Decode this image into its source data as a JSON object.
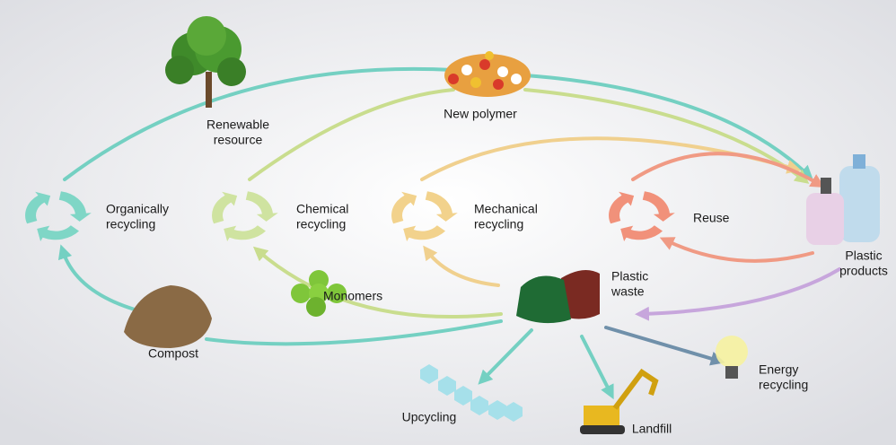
{
  "nodes": [
    {
      "lines": [
        "Renewable",
        "resource"
      ]
    },
    {
      "lines": [
        "New polymer"
      ]
    },
    {
      "lines": [
        "Organically",
        "recycling"
      ]
    },
    {
      "lines": [
        "Chemical",
        "recycling"
      ]
    },
    {
      "lines": [
        "Mechanical",
        "recycling"
      ]
    },
    {
      "lines": [
        "Reuse"
      ]
    },
    {
      "lines": [
        "Plastic",
        "products"
      ]
    },
    {
      "lines": [
        "Plastic",
        "waste"
      ]
    },
    {
      "lines": [
        "Monomers"
      ]
    },
    {
      "lines": [
        "Compost"
      ]
    },
    {
      "lines": [
        "Upcycling"
      ]
    },
    {
      "lines": [
        "Landfill"
      ]
    },
    {
      "lines": [
        "Energy",
        "recycling"
      ]
    }
  ]
}
